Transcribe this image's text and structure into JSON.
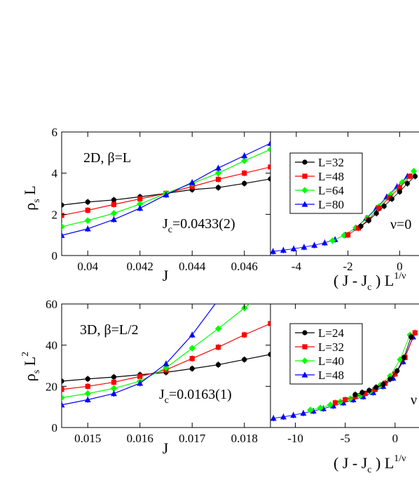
{
  "chart_data": [
    {
      "id": "top-left",
      "type": "line",
      "annotation": "2D, β=L",
      "result_prefix": "J",
      "result_sub": "c",
      "result_value": "=0.0433(2)",
      "ylabel": "ρ",
      "ylabel_sub": "s",
      "ylabel_tail": " L",
      "xlabel": "J",
      "xlim": [
        0.039,
        0.047
      ],
      "ylim": [
        0,
        6
      ],
      "xticks": [
        0.04,
        0.042,
        0.044,
        0.046
      ],
      "xtick_labels": [
        "0.04",
        "0.042",
        "0.044",
        "0.046"
      ],
      "yticks": [
        0,
        2,
        4,
        6
      ],
      "ytick_labels": [
        "0",
        "2",
        "4",
        "6"
      ],
      "series": [
        {
          "color": "#000000",
          "marker": "circle",
          "x": [
            0.039,
            0.04,
            0.041,
            0.042,
            0.043,
            0.044,
            0.045,
            0.046,
            0.047
          ],
          "y": [
            2.45,
            2.6,
            2.7,
            2.85,
            3.02,
            3.2,
            3.3,
            3.5,
            3.72
          ]
        },
        {
          "color": "#ff0000",
          "marker": "square",
          "x": [
            0.039,
            0.04,
            0.041,
            0.042,
            0.043,
            0.044,
            0.045,
            0.046,
            0.047
          ],
          "y": [
            1.95,
            2.2,
            2.48,
            2.75,
            3.02,
            3.35,
            3.7,
            4.0,
            4.3
          ]
        },
        {
          "color": "#00ff00",
          "marker": "diamond",
          "x": [
            0.039,
            0.04,
            0.041,
            0.042,
            0.043,
            0.044,
            0.045,
            0.046,
            0.047
          ],
          "y": [
            1.4,
            1.7,
            2.05,
            2.5,
            3.02,
            3.5,
            4.0,
            4.6,
            5.15
          ]
        },
        {
          "color": "#0000ff",
          "marker": "triangle",
          "x": [
            0.039,
            0.04,
            0.041,
            0.042,
            0.043,
            0.044,
            0.045,
            0.046,
            0.047
          ],
          "y": [
            0.98,
            1.3,
            1.75,
            2.3,
            2.95,
            3.55,
            4.25,
            4.85,
            5.45
          ]
        }
      ]
    },
    {
      "id": "top-right",
      "type": "scatter",
      "xlabel_main": "( J - J",
      "xlabel_sub": "c",
      "xlabel_tail": " ) L",
      "xlabel_sup": "1/ν",
      "nu_text": "ν=0",
      "xlim": [
        -5,
        0.75
      ],
      "ylim": [
        0,
        6
      ],
      "xticks": [
        -4,
        -2,
        0
      ],
      "xtick_labels": [
        "-4",
        "-2",
        "0"
      ],
      "legend_position": "top-right",
      "legend": [
        {
          "label": "L=32",
          "color": "#000000",
          "marker": "circle"
        },
        {
          "label": "L=48",
          "color": "#ff0000",
          "marker": "square"
        },
        {
          "label": "L=64",
          "color": "#00ff00",
          "marker": "diamond"
        },
        {
          "label": "L=80",
          "color": "#0000ff",
          "marker": "triangle"
        }
      ],
      "series": [
        {
          "color": "#0000ff",
          "marker": "triangle",
          "x": [
            -4.9,
            -4.5,
            -4.1,
            -3.7,
            -3.3,
            -2.9,
            -2.5,
            -2.1,
            -1.7,
            -1.3,
            -0.9,
            -0.5,
            -0.1,
            0.3
          ],
          "y": [
            0.2,
            0.26,
            0.33,
            0.41,
            0.5,
            0.62,
            0.78,
            1.0,
            1.35,
            1.8,
            2.3,
            2.85,
            3.35,
            3.85
          ]
        },
        {
          "color": "#00ff00",
          "marker": "diamond",
          "x": [
            -2.6,
            -2.15,
            -1.7,
            -1.25,
            -0.8,
            -0.35,
            0.1,
            0.55
          ],
          "y": [
            0.72,
            0.98,
            1.35,
            1.82,
            2.38,
            2.95,
            3.55,
            4.1
          ]
        },
        {
          "color": "#ff0000",
          "marker": "square",
          "x": [
            -2.0,
            -1.6,
            -1.2,
            -0.8,
            -0.4,
            0.0,
            0.4
          ],
          "y": [
            1.0,
            1.33,
            1.75,
            2.3,
            2.8,
            3.3,
            3.85
          ]
        },
        {
          "color": "#000000",
          "marker": "circle",
          "x": [
            -1.5,
            -1.2,
            -0.9,
            -0.6,
            -0.3,
            0.0,
            0.3,
            0.6
          ],
          "y": [
            1.42,
            1.7,
            2.05,
            2.4,
            2.75,
            3.1,
            3.5,
            3.85
          ]
        }
      ]
    },
    {
      "id": "bottom-left",
      "type": "line",
      "annotation": "3D, β=L/2",
      "result_prefix": "J",
      "result_sub": "c",
      "result_value": "=0.0163(1)",
      "ylabel": "ρ",
      "ylabel_sub": "s",
      "ylabel_tail": " L",
      "ylabel_sup": "2",
      "xlabel": "J",
      "xlim": [
        0.0145,
        0.0185
      ],
      "ylim": [
        0,
        60
      ],
      "xticks": [
        0.015,
        0.016,
        0.017,
        0.018
      ],
      "xtick_labels": [
        "0.015",
        "0.016",
        "0.017",
        "0.018"
      ],
      "yticks": [
        0,
        20,
        40,
        60
      ],
      "ytick_labels": [
        "0",
        "20",
        "40",
        "60"
      ],
      "series": [
        {
          "color": "#000000",
          "marker": "circle",
          "x": [
            0.0145,
            0.015,
            0.0155,
            0.016,
            0.0165,
            0.017,
            0.0175,
            0.018,
            0.0185
          ],
          "y": [
            22.5,
            23.6,
            24.5,
            25.6,
            26.8,
            28.6,
            30.5,
            33.0,
            35.5
          ]
        },
        {
          "color": "#ff0000",
          "marker": "square",
          "x": [
            0.0145,
            0.015,
            0.0155,
            0.016,
            0.0165,
            0.017,
            0.0175,
            0.018,
            0.0185
          ],
          "y": [
            18.5,
            20.0,
            22.0,
            24.8,
            28.0,
            33.5,
            39.0,
            45.0,
            50.5
          ]
        },
        {
          "color": "#00ff00",
          "marker": "diamond",
          "x": [
            0.0145,
            0.015,
            0.0155,
            0.016,
            0.0165,
            0.017,
            0.0175,
            0.018,
            0.0183
          ],
          "y": [
            14.5,
            16.5,
            19.0,
            22.5,
            29.0,
            38.5,
            48.0,
            58.0,
            64.0
          ]
        },
        {
          "color": "#0000ff",
          "marker": "triangle",
          "x": [
            0.0145,
            0.015,
            0.0155,
            0.016,
            0.0165,
            0.017,
            0.0175
          ],
          "y": [
            11.0,
            13.5,
            16.5,
            21.5,
            31.0,
            45.0,
            62.0
          ]
        }
      ]
    },
    {
      "id": "bottom-right",
      "type": "scatter",
      "xlabel_main": "( J - J",
      "xlabel_sub": "c",
      "xlabel_tail": " ) L",
      "xlabel_sup": "1/ν",
      "nu_text": "ν",
      "xlim": [
        -12.5,
        2.4
      ],
      "ylim": [
        0,
        60
      ],
      "xticks": [
        -10,
        -5,
        0
      ],
      "xtick_labels": [
        "-10",
        "-5",
        "0"
      ],
      "legend_position": "top-right",
      "legend": [
        {
          "label": "L=24",
          "color": "#000000",
          "marker": "circle"
        },
        {
          "label": "L=32",
          "color": "#ff0000",
          "marker": "square"
        },
        {
          "label": "L=40",
          "color": "#00ff00",
          "marker": "diamond"
        },
        {
          "label": "L=48",
          "color": "#0000ff",
          "marker": "triangle"
        }
      ],
      "series": [
        {
          "color": "#0000ff",
          "marker": "triangle",
          "x": [
            -12.2,
            -11.2,
            -10.2,
            -9.2,
            -8.2,
            -7.2,
            -6.2,
            -5.2,
            -4.2,
            -3.2,
            -2.2,
            -1.2,
            -0.2,
            0.8,
            1.8
          ],
          "y": [
            4.5,
            5.2,
            6.0,
            7.0,
            8.0,
            9.2,
            10.5,
            12.0,
            13.5,
            15.0,
            17.0,
            20.0,
            24.0,
            32.0,
            44.0
          ]
        },
        {
          "color": "#00ff00",
          "marker": "diamond",
          "x": [
            -8.5,
            -7.5,
            -6.5,
            -5.5,
            -4.5,
            -3.5,
            -2.5,
            -1.5,
            -0.5,
            0.5,
            1.5
          ],
          "y": [
            8.5,
            9.5,
            11.0,
            12.5,
            14.0,
            15.5,
            17.5,
            20.5,
            25.0,
            33.0,
            45.0
          ]
        },
        {
          "color": "#ff0000",
          "marker": "square",
          "x": [
            -6.0,
            -5.0,
            -4.0,
            -3.0,
            -2.0,
            -1.0,
            0.0,
            1.0,
            2.0
          ],
          "y": [
            12.0,
            13.5,
            15.0,
            16.5,
            18.5,
            21.5,
            26.0,
            34.0,
            46.0
          ]
        },
        {
          "color": "#000000",
          "marker": "circle",
          "x": [
            -4.0,
            -3.3,
            -2.6,
            -1.9,
            -1.2,
            -0.5,
            0.2,
            0.9,
            1.6
          ],
          "y": [
            16.0,
            17.0,
            18.0,
            19.5,
            21.0,
            23.5,
            27.5,
            34.0,
            44.0
          ]
        }
      ]
    }
  ]
}
